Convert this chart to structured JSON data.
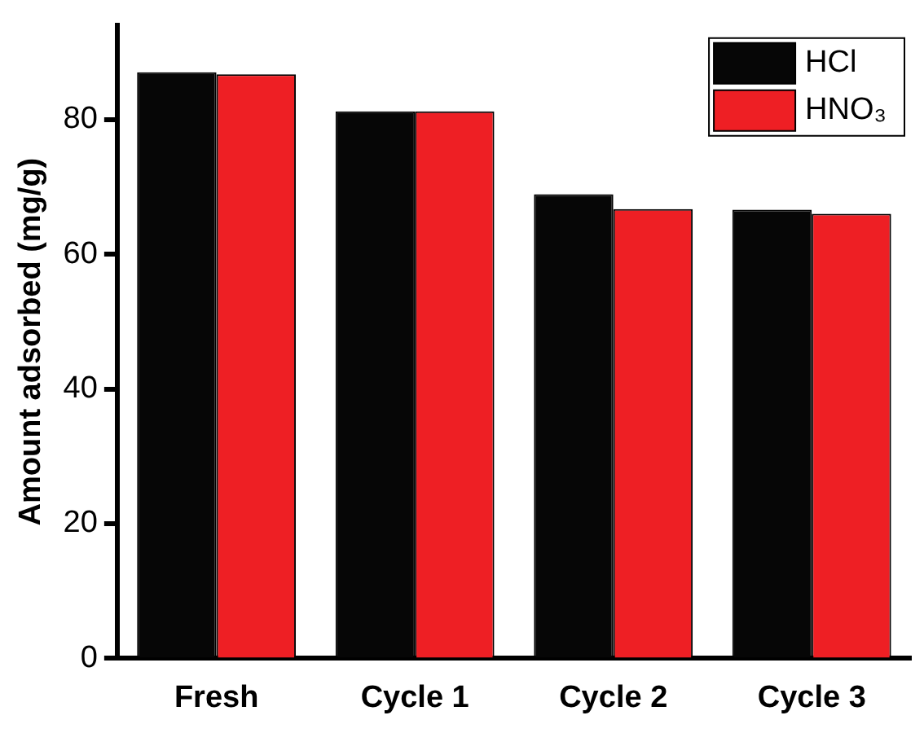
{
  "chart_data": {
    "type": "bar",
    "ylabel": "Amount adsorbed (mg/g)",
    "categories": [
      "Fresh",
      "Cycle 1",
      "Cycle 2",
      "Cycle 3"
    ],
    "series": [
      {
        "name": "HCl",
        "color": "#060606",
        "values": [
          87.0,
          81.2,
          68.9,
          66.6
        ]
      },
      {
        "name": "HNO₃",
        "color": "#ee1f24",
        "values": [
          86.7,
          81.2,
          66.7,
          66.0
        ]
      }
    ],
    "ylim": [
      0,
      94
    ],
    "yticks": [
      0,
      20,
      40,
      60,
      80
    ],
    "grid": false,
    "legend": "top right"
  }
}
